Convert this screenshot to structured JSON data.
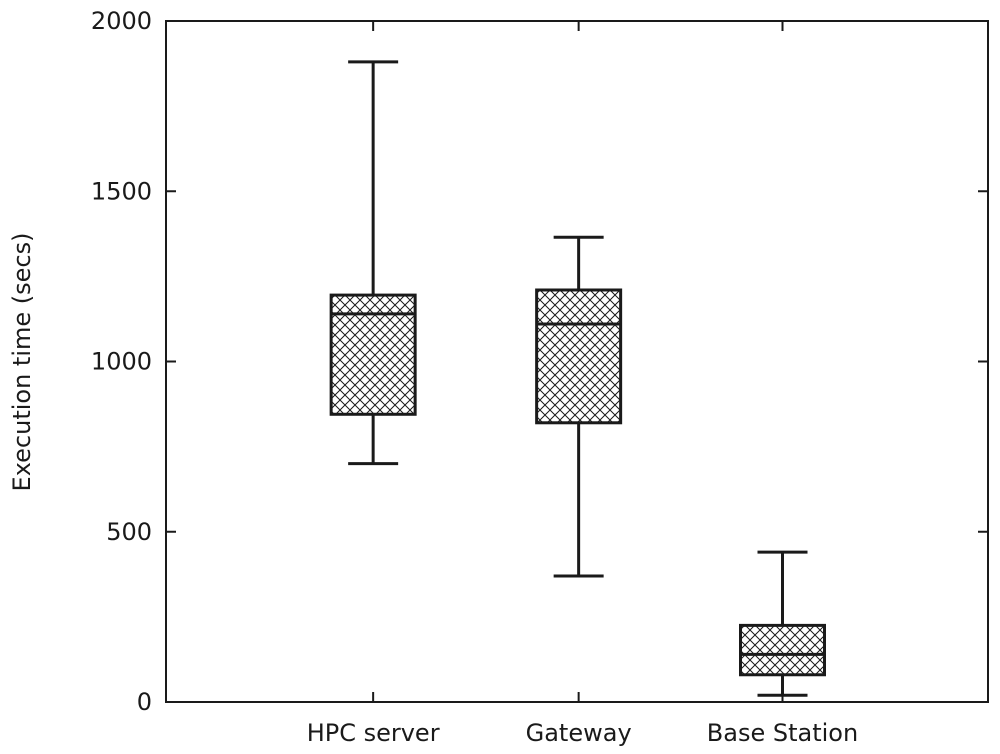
{
  "chart_data": {
    "type": "box",
    "ylabel": "Execution time (secs)",
    "xlabel": "",
    "ylim": [
      0,
      2000
    ],
    "yticks": [
      0,
      500,
      1000,
      1500,
      2000
    ],
    "categories": [
      "HPC server",
      "Gateway",
      "Base Station"
    ],
    "boxes": [
      {
        "category": "HPC server",
        "min": 700,
        "q1": 845,
        "median": 1140,
        "q3": 1195,
        "max": 1880
      },
      {
        "category": "Gateway",
        "min": 370,
        "q1": 820,
        "median": 1110,
        "q3": 1210,
        "max": 1365
      },
      {
        "category": "Base Station",
        "min": 20,
        "q1": 80,
        "median": 140,
        "q3": 225,
        "max": 440
      }
    ],
    "fill_pattern": "crosshatch",
    "grid": false,
    "legend": "none"
  }
}
